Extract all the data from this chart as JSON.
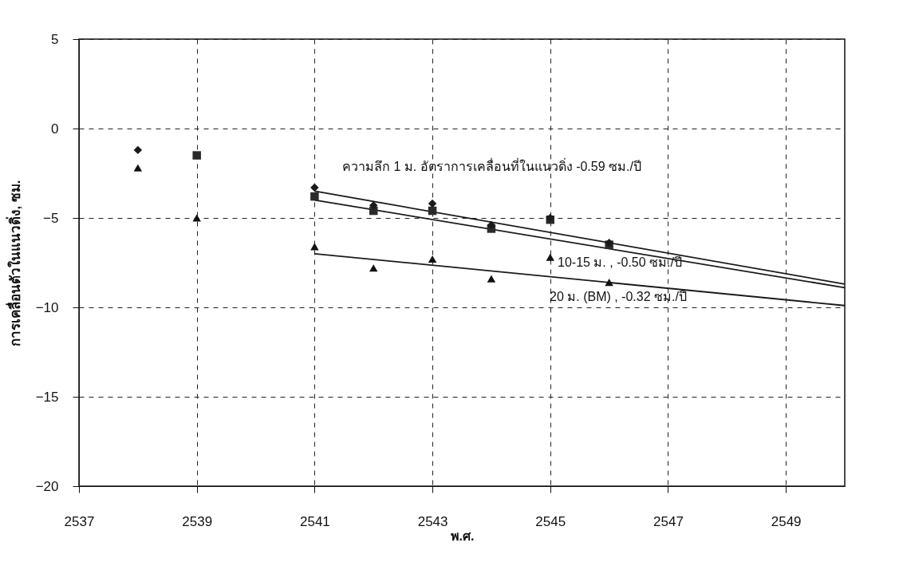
{
  "chart_data": {
    "type": "scatter",
    "xlabel": "พ.ศ.",
    "ylabel": "การเคลื่อนตัวในแนวดิ่ง, ซม.",
    "xlim": [
      2537,
      2550
    ],
    "xticks": [
      2537,
      2539,
      2541,
      2543,
      2545,
      2547,
      2549
    ],
    "ylim": [
      -20,
      5
    ],
    "yticks": [
      5,
      0,
      -5,
      -10,
      -15,
      -20
    ],
    "grid": true,
    "series": [
      {
        "marker": "diamond",
        "color": "#1a1a1a",
        "x": [
          2538,
          2541,
          2542,
          2543,
          2544,
          2545,
          2546
        ],
        "values": [
          -1.2,
          -3.3,
          -4.3,
          -4.2,
          -5.4,
          -5.0,
          -6.4
        ]
      },
      {
        "marker": "square",
        "color": "#2a2a2a",
        "x": [
          2539,
          2541,
          2542,
          2543,
          2544,
          2545,
          2546
        ],
        "values": [
          -1.5,
          -3.8,
          -4.6,
          -4.6,
          -5.6,
          -5.1,
          -6.5
        ]
      },
      {
        "marker": "triangle",
        "color": "#111111",
        "x": [
          2538,
          2539,
          2541,
          2542,
          2543,
          2544,
          2545,
          2546
        ],
        "values": [
          -2.2,
          -5.0,
          -6.6,
          -7.8,
          -7.3,
          -8.4,
          -7.2,
          -8.6
        ]
      },
      {
        "type": "line",
        "marker": "none",
        "color": "#1a1a1a",
        "x": [
          2541,
          2550
        ],
        "values": [
          -3.5,
          -8.7
        ]
      },
      {
        "type": "line",
        "marker": "none",
        "color": "#1a1a1a",
        "x": [
          2541,
          2550
        ],
        "values": [
          -4.0,
          -8.9
        ]
      },
      {
        "type": "line",
        "marker": "none",
        "color": "#1a1a1a",
        "x": [
          2541,
          2550
        ],
        "values": [
          -7.0,
          -9.9
        ]
      }
    ],
    "annotations": [
      "ความลึก 1 ม. อัตราการเคลื่อนที่ในแนวดิ่ง  -0.59 ซม./ปี",
      "10-15 ม. , -0.50 ซม./ปี",
      "20 ม. (BM) , -0.32 ซม./ปี"
    ]
  }
}
